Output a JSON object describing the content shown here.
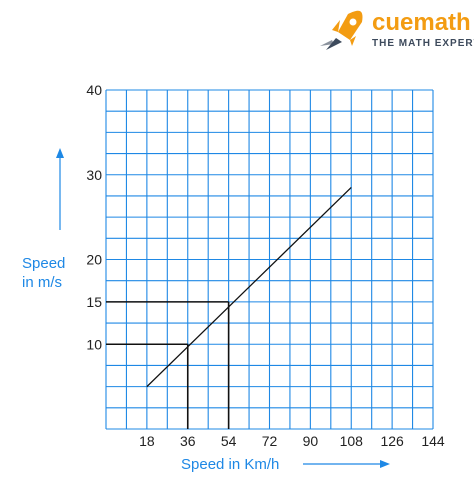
{
  "brand": {
    "name": "cuemath",
    "tagline": "THE MATH EXPERT"
  },
  "chart_data": {
    "type": "line",
    "title": "",
    "xlabel": "Speed in Km/h",
    "ylabel_line1": "Speed",
    "ylabel_line2": "in m/s",
    "x_ticks": [
      "18",
      "36",
      "54",
      "72",
      "90",
      "108",
      "126",
      "144"
    ],
    "y_ticks": [
      "10",
      "15",
      "20",
      "30",
      "40"
    ],
    "xlim": [
      0,
      144
    ],
    "ylim": [
      0,
      40
    ],
    "grid": true,
    "series": [
      {
        "x": [
          18,
          108
        ],
        "y": [
          5,
          28.5
        ]
      }
    ],
    "reference_points": [
      {
        "x": 36,
        "y": 10
      },
      {
        "x": 54,
        "y": 15
      }
    ],
    "colors": {
      "grid": "#1e88e5",
      "line": "#111111",
      "label": "#1e88e5"
    }
  }
}
